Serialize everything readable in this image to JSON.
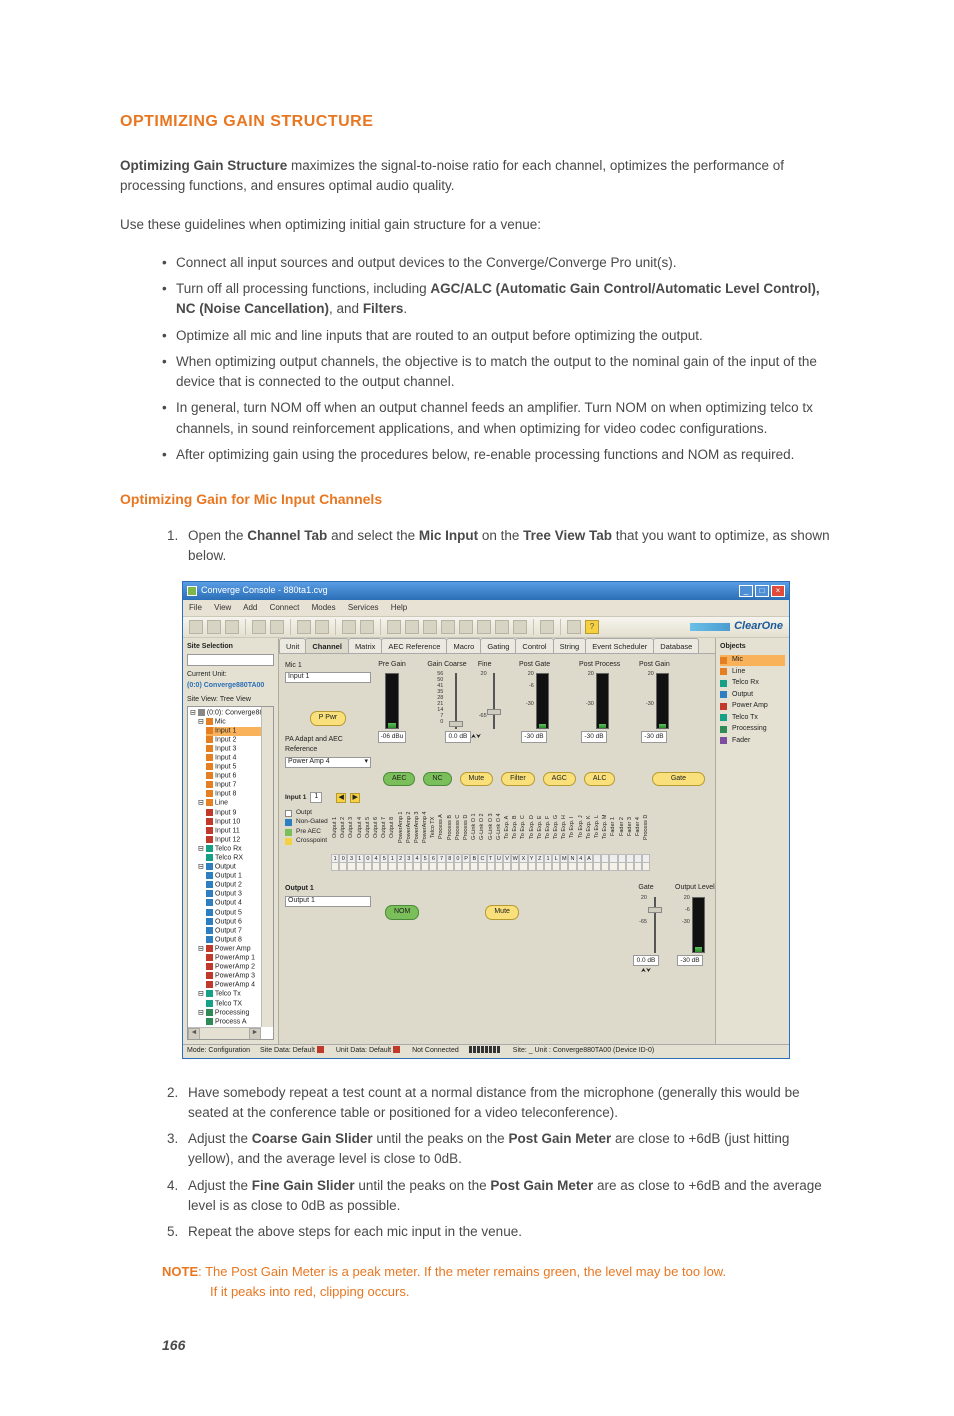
{
  "title": "OPTIMIZING GAIN STRUCTURE",
  "intro_lead": "Optimizing Gain Structure",
  "intro_tail": " maximizes the signal-to-noise ratio for each channel, optimizes the performance of processing functions, and ensures optimal audio quality.",
  "intro2": "Use these guidelines when optimizing initial gain structure for a venue:",
  "bullets": {
    "b1": "Connect all input sources and output devices to the Converge/Converge Pro unit(s).",
    "b2a": "Turn off all processing functions, including ",
    "b2b": "AGC/ALC (Automatic Gain Control/Automatic Level Control), NC (Noise Cancellation)",
    "b2c": ", and ",
    "b2d": "Filters",
    "b2e": ".",
    "b3": "Optimize all mic and line inputs that are routed to an output before optimizing the output.",
    "b4": "When optimizing output channels, the objective is to match the output to the nominal gain of the input of the device that is connected to the output channel.",
    "b5": "In general, turn NOM off when an output channel feeds an amplifier. Turn NOM on when optimizing telco tx channels, in sound reinforcement applications, and when optimizing for video codec configurations.",
    "b6": "After optimizing gain using the procedures below, re-enable processing functions and NOM as required."
  },
  "subhead": "Optimizing Gain for Mic Input Channels",
  "steps": {
    "s1a": "Open the ",
    "s1b": "Channel Tab",
    "s1c": " and select the ",
    "s1d": "Mic Input",
    "s1e": " on the ",
    "s1f": "Tree View Tab",
    "s1g": " that you want to optimize, as shown below.",
    "s2": "Have somebody repeat a test count at a normal distance from the microphone (generally this would be seated at the conference table or positioned for a video teleconference).",
    "s3a": "Adjust the ",
    "s3b": "Coarse Gain Slider",
    "s3c": " until the peaks on the ",
    "s3d": "Post Gain Meter",
    "s3e": " are close to +6dB (just hitting yellow), and the average level is close to 0dB.",
    "s4a": "Adjust the ",
    "s4b": "Fine Gain Slider",
    "s4c": " until the peaks on the ",
    "s4d": "Post Gain Meter",
    "s4e": " are as close to +6dB and the average level is as close to 0dB as possible.",
    "s5": "Repeat the above steps for each mic input in the venue."
  },
  "note_lead": "NOTE",
  "note_body": ": The Post Gain Meter is a peak meter. If the meter remains green, the level may be too low.",
  "note_body2": "If it peaks into red, clipping occurs.",
  "page": "166",
  "app": {
    "title": "Converge Console - 880ta1.cvg",
    "menus": [
      "File",
      "View",
      "Add",
      "Connect",
      "Modes",
      "Services",
      "Help"
    ],
    "brand": "ClearOne",
    "left": {
      "site_sel": "Site Selection",
      "current_unit": "Current Unit:",
      "unit_name": "(0:0) Converge880TA00",
      "site_view": "Site View: Tree View",
      "root": "(0:0): Converge880TA: A",
      "groups": {
        "mic": "Mic",
        "line": "Line",
        "telco_rx": "Telco Rx",
        "output": "Output",
        "power_amp": "Power Amp",
        "telco_tx": "Telco Tx",
        "processing": "Processing"
      },
      "mic_items": [
        "Input 1",
        "Input 2",
        "Input 3",
        "Input 4",
        "Input 5",
        "Input 6",
        "Input 7",
        "Input 8"
      ],
      "line_items": [
        "Input 9",
        "Input 10",
        "Input 11",
        "Input 12"
      ],
      "telco_rx_items": [
        "Telco RX"
      ],
      "output_items": [
        "Output 1",
        "Output 2",
        "Output 3",
        "Output 4",
        "Output 5",
        "Output 6",
        "Output 7",
        "Output 8"
      ],
      "pa_items": [
        "PowerAmp 1",
        "PowerAmp 2",
        "PowerAmp 3",
        "PowerAmp 4"
      ],
      "telco_tx_items": [
        "Telco TX"
      ],
      "proc_items": [
        "Process A",
        "Process B",
        "Process C",
        "Process D"
      ]
    },
    "tabs": [
      "Unit",
      "Channel",
      "Matrix",
      "AEC Reference",
      "Macro",
      "Gating",
      "Control",
      "String",
      "Event Scheduler",
      "Database"
    ],
    "mid": {
      "mic_label": "Mic 1",
      "input_field": "Input 1",
      "pre_gain": "Pre Gain",
      "gain_coarse": "Gain Coarse",
      "fine": "Fine",
      "post_gate": "Post Gate",
      "post_proc": "Post Process",
      "post_gain": "Post Gain",
      "ppwr_btn": "P Pwr",
      "db_readout": "-06 dBu",
      "fine_readout": "0.0 dB",
      "db_neg": "-30 dB",
      "paref": "PA Adapt and AEC Reference",
      "paref_val": "Power Amp 4",
      "effects": [
        "AEC",
        "NC",
        "Mute",
        "Filter",
        "AGC",
        "ALC",
        "Gate"
      ],
      "input_hdr": "Input 1",
      "legend": [
        "Outpt",
        "Non-Gated",
        "Pre AEC",
        "Crosspoint"
      ],
      "matrix_cols": [
        "Output 1",
        "Output 2",
        "Output 3",
        "Output 4",
        "Output 5",
        "Output 6",
        "Output 7",
        "Output 8",
        "PowerAmp 1",
        "PowerAmp 2",
        "PowerAmp 3",
        "PowerAmp 4",
        "Telco TX",
        "Process A",
        "Process B",
        "Process C",
        "Process D",
        "G-Link O 1",
        "G-Link O 2",
        "G-Link O 3",
        "G-Link O 4",
        "To Exp. A",
        "To Exp. B",
        "To Exp. C",
        "To Exp. D",
        "To Exp. E",
        "To Exp. F",
        "To Exp. G",
        "To Exp. H",
        "To Exp. I",
        "To Exp. J",
        "To Exp. K",
        "To Exp. L",
        "To Exp. M",
        "Fader 1",
        "Fader 2",
        "Fader 3",
        "Fader 4",
        "Process D"
      ],
      "matrix_nums": [
        "1",
        "0",
        "3",
        "1",
        "0",
        "4",
        "5",
        "1",
        "2",
        "3",
        "4",
        "5",
        "6",
        "7",
        "8",
        "0",
        "P",
        "B",
        "C",
        "T",
        "U",
        "V",
        "W",
        "X",
        "Y",
        "Z",
        "1",
        "L",
        "M",
        "N",
        "4",
        "A"
      ],
      "out_hdr": "Output 1",
      "out_field": "Output 1",
      "nom": "NOM",
      "mute": "Mute",
      "gate": "Gate",
      "out_level": "Output Level",
      "out_read": "0.0 dB"
    },
    "right": {
      "hdr": "Objects",
      "items": [
        {
          "c": "c-ora",
          "t": "Mic",
          "sel": true
        },
        {
          "c": "c-ora",
          "t": "Line"
        },
        {
          "c": "c-tel",
          "t": "Telco Rx"
        },
        {
          "c": "c-blu",
          "t": "Output"
        },
        {
          "c": "c-red",
          "t": "Power Amp"
        },
        {
          "c": "c-tel",
          "t": "Telco Tx"
        },
        {
          "c": "c-grn",
          "t": "Processing"
        },
        {
          "c": "c-pur",
          "t": "Fader"
        }
      ]
    },
    "status": {
      "mode": "Mode: Configuration",
      "site": "Site Data: Default",
      "unitd": "Unit Data: Default",
      "conn": "Not Connected",
      "tail": "Site: _ Unit : Converge880TA00 (Device ID-0)"
    }
  }
}
